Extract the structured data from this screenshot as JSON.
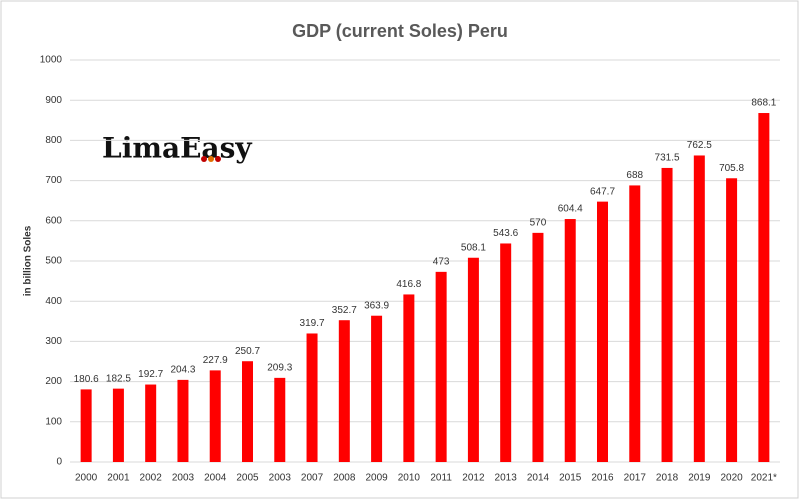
{
  "chart_data": {
    "type": "bar",
    "title": "GDP (current Soles) Peru",
    "y_label": "in billion Soles",
    "logo": "LimaEasy",
    "categories": [
      "2000",
      "2001",
      "2002",
      "2003",
      "2004",
      "2005",
      "2003",
      "2007",
      "2008",
      "2009",
      "2010",
      "2011",
      "2012",
      "2013",
      "2014",
      "2015",
      "2016",
      "2017",
      "2018",
      "2019",
      "2020",
      "2021*"
    ],
    "values": [
      180.6,
      182.5,
      192.7,
      204.3,
      227.9,
      250.7,
      209.3,
      319.7,
      352.7,
      363.9,
      416.8,
      473,
      508.1,
      543.6,
      570,
      604.4,
      647.7,
      688,
      731.5,
      762.5,
      705.8,
      868.1
    ],
    "color": "#ff0000",
    "ylim": [
      0,
      1000
    ],
    "yticks": [
      0,
      100,
      200,
      300,
      400,
      500,
      600,
      700,
      800,
      900,
      1000
    ],
    "grid": true
  }
}
